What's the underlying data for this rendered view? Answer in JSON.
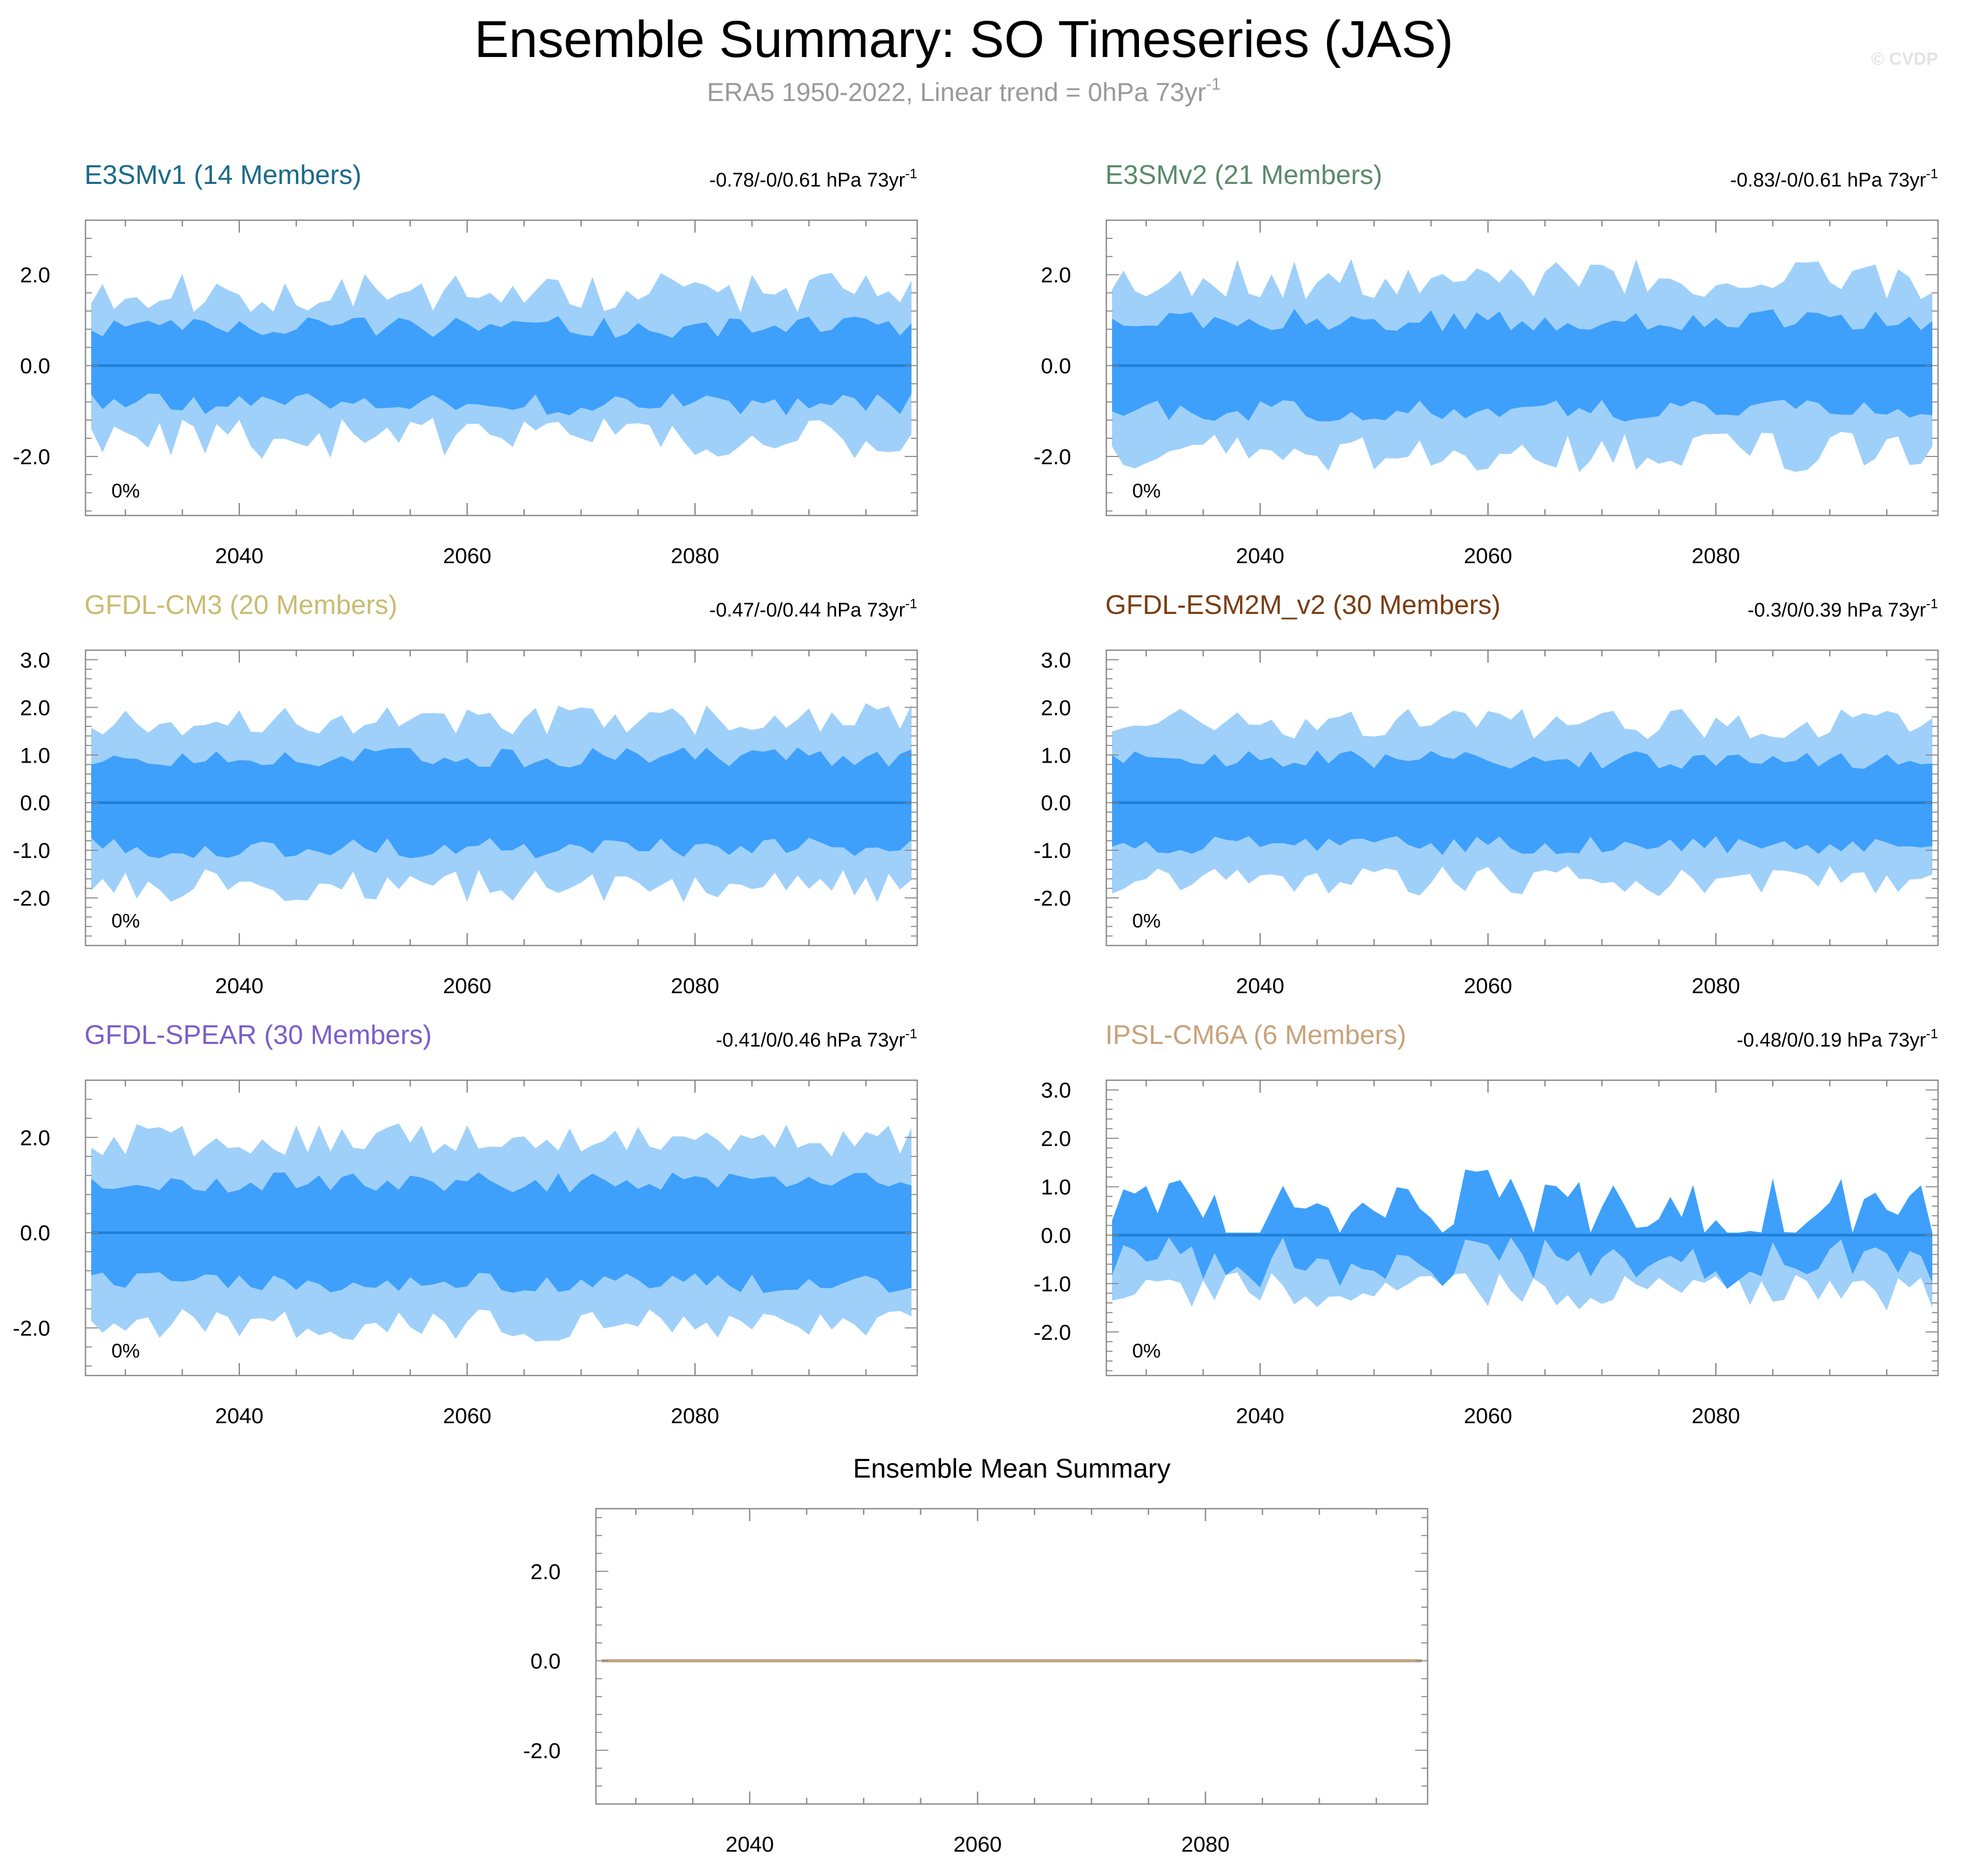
{
  "figure": {
    "title": "Ensemble Summary: SO Timeseries (JAS)",
    "subtitle": "ERA5 1950-2022, Linear trend = 0hPa 73yr",
    "subtitle_sup": "-1",
    "watermark": "© CVDP"
  },
  "colors": {
    "outer_band": "#9fd0fa",
    "inner_band": "#3ea0fb",
    "mean_line": "#1e7fd6",
    "summary_line": "#c2a383",
    "axis": "#888888",
    "subtitle": "#9a9a9a"
  },
  "chart_data": [
    {
      "type": "area",
      "title": "E3SMv1 (14 Members)",
      "title_color": "#1b6a8a",
      "trend": "-0.78/-0/0.61 hPa 73yr",
      "trend_sup": "-1",
      "percent_label": "0%",
      "x": {
        "start": 2027,
        "end": 2099
      },
      "xlim": [
        2026.5,
        2099.5
      ],
      "ylim": [
        -3.3,
        3.2
      ],
      "xticks": [
        2040,
        2060,
        2080
      ],
      "yticks": [
        2.0,
        0.0,
        -2.0
      ],
      "ytick_labels": [
        "2.0",
        "0.0",
        "-2.0"
      ],
      "mean": 0,
      "seed": 11,
      "outer_amp": 1.6,
      "inner_amp": 0.85,
      "outer_var": 0.45,
      "inner_var": 0.25
    },
    {
      "type": "area",
      "title": "E3SMv2 (21 Members)",
      "title_color": "#5a8a6a",
      "trend": "-0.83/-0/0.61 hPa 73yr",
      "trend_sup": "-1",
      "percent_label": "0%",
      "x": {
        "start": 2027,
        "end": 2099
      },
      "xlim": [
        2026.5,
        2099.5
      ],
      "ylim": [
        -3.3,
        3.2
      ],
      "xticks": [
        2040,
        2060,
        2080
      ],
      "yticks": [
        2.0,
        0.0,
        -2.0
      ],
      "ytick_labels": [
        "2.0",
        "0.0",
        "-2.0"
      ],
      "mean": 0,
      "seed": 23,
      "outer_amp": 1.9,
      "inner_amp": 1.0,
      "outer_var": 0.45,
      "inner_var": 0.25
    },
    {
      "type": "area",
      "title": "GFDL-CM3 (20 Members)",
      "title_color": "#c9bc72",
      "trend": "-0.47/-0/0.44 hPa 73yr",
      "trend_sup": "-1",
      "percent_label": "0%",
      "x": {
        "start": 2027,
        "end": 2099
      },
      "xlim": [
        2026.5,
        2099.5
      ],
      "ylim": [
        -3.0,
        3.2
      ],
      "xticks": [
        2040,
        2060,
        2080
      ],
      "yticks": [
        3.0,
        2.0,
        1.0,
        0.0,
        -1.0,
        -2.0
      ],
      "ytick_labels": [
        "3.0",
        "2.0",
        "1.0",
        "0.0",
        "-1.0",
        "-2.0"
      ],
      "mean": 0,
      "seed": 37,
      "outer_amp": 1.75,
      "inner_amp": 0.95,
      "outer_var": 0.35,
      "inner_var": 0.22
    },
    {
      "type": "area",
      "title": "GFDL-ESM2M_v2 (30 Members)",
      "title_color": "#7a3d12",
      "trend": "-0.3/0/0.39 hPa 73yr",
      "trend_sup": "-1",
      "percent_label": "0%",
      "x": {
        "start": 2027,
        "end": 2099
      },
      "xlim": [
        2026.5,
        2099.5
      ],
      "ylim": [
        -3.0,
        3.2
      ],
      "xticks": [
        2040,
        2060,
        2080
      ],
      "yticks": [
        3.0,
        2.0,
        1.0,
        0.0,
        -1.0,
        -2.0
      ],
      "ytick_labels": [
        "3.0",
        "2.0",
        "1.0",
        "0.0",
        "-1.0",
        "-2.0"
      ],
      "mean": 0,
      "seed": 51,
      "outer_amp": 1.65,
      "inner_amp": 0.9,
      "outer_var": 0.32,
      "inner_var": 0.2
    },
    {
      "type": "area",
      "title": "GFDL-SPEAR (30 Members)",
      "title_color": "#7b5ec9",
      "trend": "-0.41/0/0.46 hPa 73yr",
      "trend_sup": "-1",
      "percent_label": "0%",
      "x": {
        "start": 2027,
        "end": 2099
      },
      "xlim": [
        2026.5,
        2099.5
      ],
      "ylim": [
        -3.0,
        3.2
      ],
      "xticks": [
        2040,
        2060,
        2080
      ],
      "yticks": [
        2.0,
        0.0,
        -2.0
      ],
      "ytick_labels": [
        "2.0",
        "0.0",
        "-2.0"
      ],
      "mean": 0,
      "seed": 67,
      "outer_amp": 1.95,
      "inner_amp": 1.05,
      "outer_var": 0.35,
      "inner_var": 0.22
    },
    {
      "type": "area",
      "title": "IPSL-CM6A (6 Members)",
      "title_color": "#c8a27a",
      "trend": "-0.48/0/0.19 hPa 73yr",
      "trend_sup": "-1",
      "percent_label": "0%",
      "x": {
        "start": 2027,
        "end": 2099
      },
      "xlim": [
        2026.5,
        2099.5
      ],
      "ylim": [
        -2.9,
        3.2
      ],
      "xticks": [
        2040,
        2060,
        2080
      ],
      "yticks": [
        3.0,
        2.0,
        1.0,
        0.0,
        -1.0,
        -2.0
      ],
      "ytick_labels": [
        "3.0",
        "2.0",
        "1.0",
        "0.0",
        "-1.0",
        "-2.0"
      ],
      "mean": 0,
      "seed": 83,
      "outer_amp": 1.0,
      "inner_amp": 0.55,
      "outer_var": 0.4,
      "inner_var": 0.3,
      "asymmetric": true
    },
    {
      "type": "line",
      "title": "Ensemble Mean Summary",
      "title_color": "#000000",
      "x": {
        "start": 2027,
        "end": 2099
      },
      "xlim": [
        2026.5,
        2099.5
      ],
      "ylim": [
        -3.2,
        3.4
      ],
      "xticks": [
        2040,
        2060,
        2080
      ],
      "yticks": [
        2.0,
        0.0,
        -2.0
      ],
      "ytick_labels": [
        "2.0",
        "0.0",
        "-2.0"
      ],
      "mean": 0
    }
  ]
}
